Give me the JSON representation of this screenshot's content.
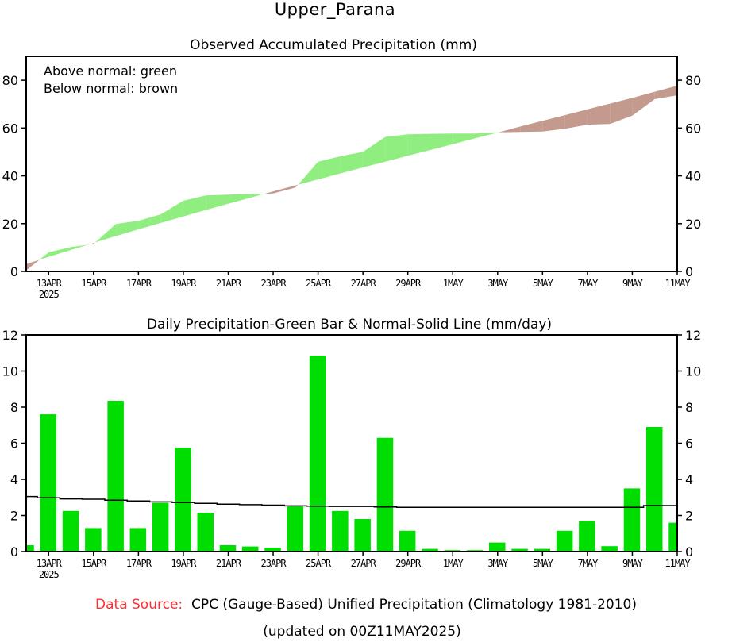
{
  "header": {
    "title": "Upper_Parana"
  },
  "footer": {
    "source_label": "Data Source:",
    "source_text": "CPC (Gauge-Based) Unified Precipitation (Climatology 1981-2010)",
    "updated": "(updated on 00Z11MAY2025)"
  },
  "colors": {
    "above_normal": "#90ee80",
    "below_normal": "#c49a8e",
    "bar": "#00dd00",
    "source_label": "#ff3030"
  },
  "chart_data": [
    {
      "type": "area",
      "title": "Observed Accumulated Precipitation (mm)",
      "legend": [
        "Above normal: green",
        "Below normal: brown"
      ],
      "legend_position": "top-left",
      "ylim": [
        0,
        90
      ],
      "yticks": [
        0,
        20,
        40,
        60,
        80
      ],
      "ytick_labels": [
        "0",
        "20",
        "40",
        "60",
        "80"
      ],
      "xtick_labels": [
        "13APR",
        "15APR",
        "17APR",
        "19APR",
        "21APR",
        "23APR",
        "25APR",
        "27APR",
        "29APR",
        "1MAY",
        "3MAY",
        "5MAY",
        "7MAY",
        "9MAY",
        "11MAY"
      ],
      "xtick_year": "2025",
      "x": [
        "12APR",
        "13APR",
        "14APR",
        "15APR",
        "16APR",
        "17APR",
        "18APR",
        "19APR",
        "20APR",
        "21APR",
        "22APR",
        "23APR",
        "24APR",
        "25APR",
        "26APR",
        "27APR",
        "28APR",
        "29APR",
        "30APR",
        "1MAY",
        "2MAY",
        "3MAY",
        "4MAY",
        "5MAY",
        "6MAY",
        "7MAY",
        "8MAY",
        "9MAY",
        "10MAY",
        "11MAY"
      ],
      "series": [
        {
          "name": "Observed",
          "values": [
            0.4,
            8.0,
            10.2,
            11.5,
            19.9,
            21.2,
            23.9,
            29.6,
            31.8,
            32.1,
            32.4,
            32.6,
            35.1,
            45.9,
            48.2,
            50.0,
            56.3,
            57.4,
            57.6,
            57.7,
            57.7,
            58.2,
            58.4,
            58.5,
            59.7,
            61.4,
            61.7,
            65.2,
            72.1,
            73.7
          ]
        },
        {
          "name": "Normal",
          "values": [
            3.1,
            6.1,
            9.0,
            11.9,
            14.8,
            17.6,
            20.3,
            23.0,
            25.7,
            28.3,
            30.9,
            33.5,
            36.0,
            38.5,
            41.0,
            43.5,
            45.9,
            48.4,
            50.8,
            53.2,
            55.7,
            58.1,
            60.6,
            63.0,
            65.4,
            67.8,
            70.2,
            72.6,
            75.2,
            77.7
          ]
        }
      ]
    },
    {
      "type": "bar",
      "title": "Daily Precipitation-Green Bar & Normal-Solid Line (mm/day)",
      "ylim": [
        0,
        12
      ],
      "yticks": [
        0,
        2,
        4,
        6,
        8,
        10,
        12
      ],
      "ytick_labels": [
        "0",
        "2",
        "4",
        "6",
        "8",
        "10",
        "12"
      ],
      "xtick_labels": [
        "13APR",
        "15APR",
        "17APR",
        "19APR",
        "21APR",
        "23APR",
        "25APR",
        "27APR",
        "29APR",
        "1MAY",
        "3MAY",
        "5MAY",
        "7MAY",
        "9MAY",
        "11MAY"
      ],
      "xtick_year": "2025",
      "categories": [
        "12APR",
        "13APR",
        "14APR",
        "15APR",
        "16APR",
        "17APR",
        "18APR",
        "19APR",
        "20APR",
        "21APR",
        "22APR",
        "23APR",
        "24APR",
        "25APR",
        "26APR",
        "27APR",
        "28APR",
        "29APR",
        "30APR",
        "1MAY",
        "2MAY",
        "3MAY",
        "4MAY",
        "5MAY",
        "6MAY",
        "7MAY",
        "8MAY",
        "9MAY",
        "10MAY",
        "11MAY"
      ],
      "series": [
        {
          "name": "Daily Precipitation",
          "values": [
            0.35,
            7.6,
            2.25,
            1.3,
            8.35,
            1.3,
            2.7,
            5.75,
            2.15,
            0.35,
            0.28,
            0.22,
            2.5,
            10.85,
            2.25,
            1.8,
            6.3,
            1.15,
            0.15,
            0.08,
            0.08,
            0.5,
            0.15,
            0.15,
            1.15,
            1.7,
            0.3,
            3.5,
            6.9,
            1.6
          ]
        },
        {
          "name": "Normal",
          "values": [
            3.05,
            2.98,
            2.92,
            2.9,
            2.85,
            2.8,
            2.75,
            2.72,
            2.67,
            2.63,
            2.6,
            2.57,
            2.53,
            2.52,
            2.5,
            2.5,
            2.47,
            2.45,
            2.45,
            2.45,
            2.45,
            2.45,
            2.45,
            2.45,
            2.45,
            2.45,
            2.45,
            2.45,
            2.55,
            2.55
          ]
        }
      ]
    }
  ]
}
